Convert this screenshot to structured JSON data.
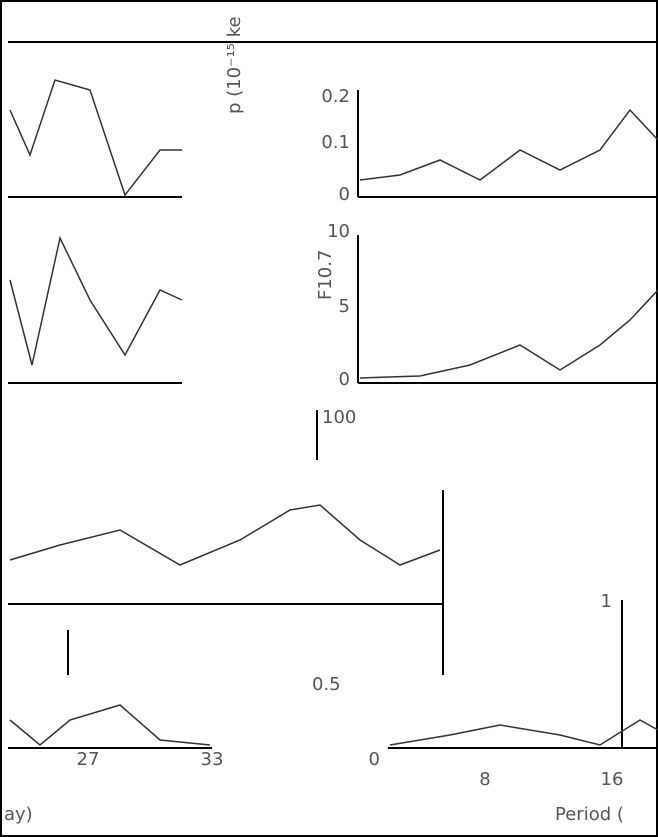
{
  "panels": {
    "top_right": {
      "ylabel": "p (10⁻¹⁵ ke",
      "yticks": [
        "0.2",
        "0.1",
        "0"
      ]
    },
    "middle_right": {
      "ylabel": "F10.7",
      "yticks": [
        "10",
        "5",
        "0"
      ]
    },
    "center": {
      "label": "100"
    },
    "lower_left": {
      "xticks": [
        "27",
        "33"
      ],
      "xlabel": "ay)"
    },
    "lower_right": {
      "yticks": [
        "1",
        "0"
      ],
      "xticks": [
        "8",
        "16"
      ],
      "xlabel": "Period (",
      "note": "0.5"
    }
  }
}
